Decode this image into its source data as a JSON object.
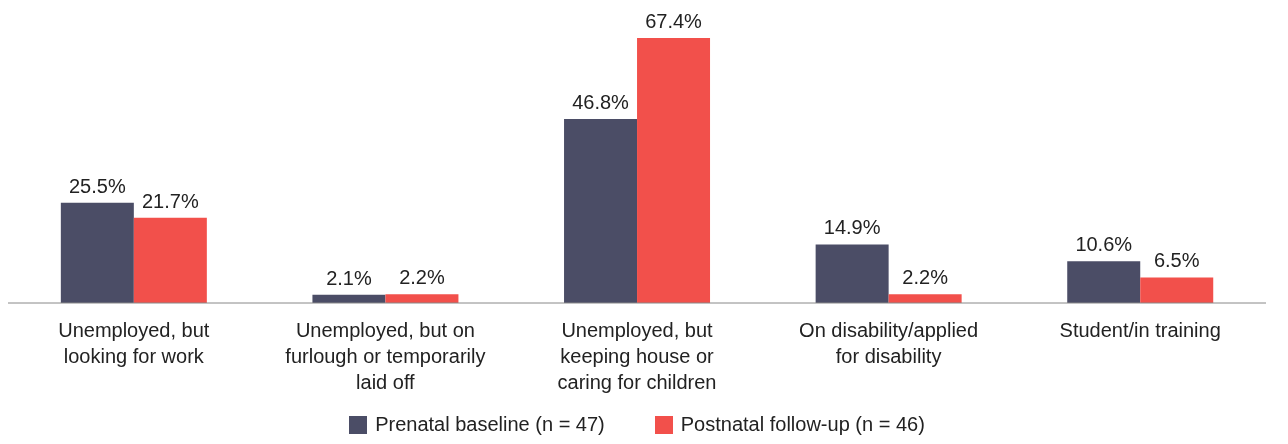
{
  "chart_data": {
    "type": "bar",
    "categories": [
      "Unemployed, but\nlooking for work",
      "Unemployed, but on\nfurlough or temporarily\nlaid off",
      "Unemployed, but\nkeeping house or\ncaring for children",
      "On disability/applied\nfor disability",
      "Student/in training"
    ],
    "series": [
      {
        "name": "Prenatal baseline (n = 47)",
        "color": "#4b4d66",
        "values": [
          25.5,
          2.1,
          46.8,
          14.9,
          10.6
        ],
        "value_labels": [
          "25.5%",
          "2.1%",
          "46.8%",
          "14.9%",
          "10.6%"
        ]
      },
      {
        "name": "Postnatal follow-up (n = 46)",
        "color": "#f2504b",
        "values": [
          21.7,
          2.2,
          67.4,
          2.2,
          6.5
        ],
        "value_labels": [
          "21.7%",
          "2.2%",
          "67.4%",
          "2.2%",
          "6.5%"
        ]
      }
    ],
    "legend": "bottom",
    "grid": false
  }
}
